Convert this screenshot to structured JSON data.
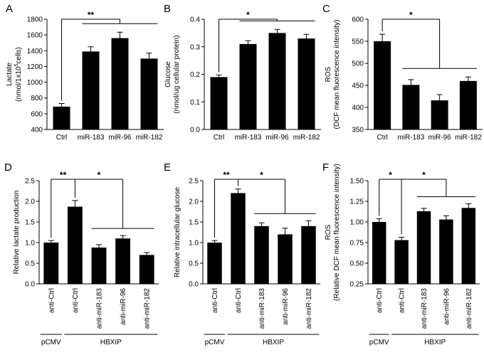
{
  "chart_data": [
    {
      "panel": "A",
      "type": "bar",
      "ylabel_lines": [
        "Lactate",
        "(nmol/1x10",
        "5",
        "cells)"
      ],
      "ylim": [
        400,
        1800
      ],
      "yticks": [
        400,
        600,
        800,
        1000,
        1200,
        1400,
        1600,
        1800
      ],
      "categories": [
        "Ctrl",
        "miR-183",
        "miR-96",
        "miR-182"
      ],
      "values": [
        690,
        1390,
        1560,
        1300
      ],
      "errors": [
        40,
        60,
        75,
        70
      ],
      "significance": [
        {
          "label": "**",
          "from": 0,
          "to": [
            1,
            2,
            3
          ]
        }
      ]
    },
    {
      "panel": "B",
      "type": "bar",
      "ylabel_lines": [
        "Glucose",
        "(nmol/ug cellular protein)"
      ],
      "ylim": [
        0.0,
        0.4
      ],
      "yticks": [
        0.0,
        0.1,
        0.2,
        0.3,
        0.4
      ],
      "categories": [
        "Ctrl",
        "miR-183",
        "miR-96",
        "miR-182"
      ],
      "values": [
        0.19,
        0.31,
        0.35,
        0.33
      ],
      "errors": [
        0.008,
        0.012,
        0.013,
        0.015
      ],
      "significance": [
        {
          "label": "*",
          "from": 0,
          "to": [
            1,
            2,
            3
          ]
        }
      ]
    },
    {
      "panel": "C",
      "type": "bar",
      "ylabel_lines": [
        "ROS",
        "(DCF mean fluorescence intensity)"
      ],
      "ylim": [
        350,
        600
      ],
      "yticks": [
        350,
        400,
        450,
        500,
        550,
        600
      ],
      "categories": [
        "Ctrl",
        "miR-183",
        "miR-96",
        "miR-182"
      ],
      "values": [
        550,
        451,
        416,
        460
      ],
      "errors": [
        16,
        12,
        13,
        9
      ],
      "significance": [
        {
          "label": "*",
          "from": 0,
          "to": [
            1,
            2,
            3
          ]
        }
      ]
    },
    {
      "panel": "D",
      "type": "bar",
      "ylabel_lines": [
        "Relative lactate production"
      ],
      "ylim": [
        0.0,
        2.5
      ],
      "yticks": [
        0.0,
        0.5,
        1.0,
        1.5,
        2.0,
        2.5
      ],
      "categories": [
        "anti-Ctrl",
        "anti-Ctrl",
        "anti-miR-183",
        "anti-miR-96",
        "anti-miR-182"
      ],
      "values": [
        1.0,
        1.87,
        0.88,
        1.1,
        0.7
      ],
      "errors": [
        0.05,
        0.15,
        0.07,
        0.07,
        0.06
      ],
      "significance": [
        {
          "label": "**",
          "from": 0,
          "to": [
            1
          ]
        },
        {
          "label": "*",
          "from": 1,
          "to": [
            2,
            3,
            4
          ]
        }
      ],
      "groups": [
        {
          "label": "pCMV",
          "from": 0,
          "to": 0
        },
        {
          "label": "HBXIP",
          "from": 1,
          "to": 4
        }
      ]
    },
    {
      "panel": "E",
      "type": "bar",
      "ylabel_lines": [
        "Relative intracellular glucose"
      ],
      "ylim": [
        0.0,
        2.5
      ],
      "yticks": [
        0.0,
        0.5,
        1.0,
        1.5,
        2.0,
        2.5
      ],
      "categories": [
        "anti-Ctrl",
        "anti-Ctrl",
        "anti-miR-183",
        "anti-miR-96",
        "anti-miR-182"
      ],
      "values": [
        1.0,
        2.2,
        1.4,
        1.2,
        1.4
      ],
      "errors": [
        0.05,
        0.1,
        0.08,
        0.15,
        0.13
      ],
      "significance": [
        {
          "label": "**",
          "from": 0,
          "to": [
            1
          ]
        },
        {
          "label": "*",
          "from": 1,
          "to": [
            2,
            3,
            4
          ]
        }
      ],
      "groups": [
        {
          "label": "pCMV",
          "from": 0,
          "to": 0
        },
        {
          "label": "HBXIP",
          "from": 1,
          "to": 4
        }
      ]
    },
    {
      "panel": "F",
      "type": "bar",
      "ylabel_lines": [
        "ROS",
        "(Relative DCF mean fluorescence intensity)"
      ],
      "ylim": [
        0.25,
        1.5
      ],
      "yticks": [
        0.25,
        0.5,
        0.75,
        1.0,
        1.25,
        1.5
      ],
      "categories": [
        "anti-Ctrl",
        "anti-Ctrl",
        "anti-miR-183",
        "anti-miR-96",
        "anti-miR-182"
      ],
      "values": [
        1.0,
        0.78,
        1.13,
        1.03,
        1.17
      ],
      "errors": [
        0.04,
        0.035,
        0.035,
        0.045,
        0.05
      ],
      "significance": [
        {
          "label": "*",
          "from": 0,
          "to": [
            1
          ]
        },
        {
          "label": "*",
          "from": 1,
          "to": [
            2,
            3,
            4
          ]
        }
      ],
      "groups": [
        {
          "label": "pCMV",
          "from": 0,
          "to": 0
        },
        {
          "label": "HBXIP",
          "from": 1,
          "to": 4
        }
      ]
    }
  ]
}
